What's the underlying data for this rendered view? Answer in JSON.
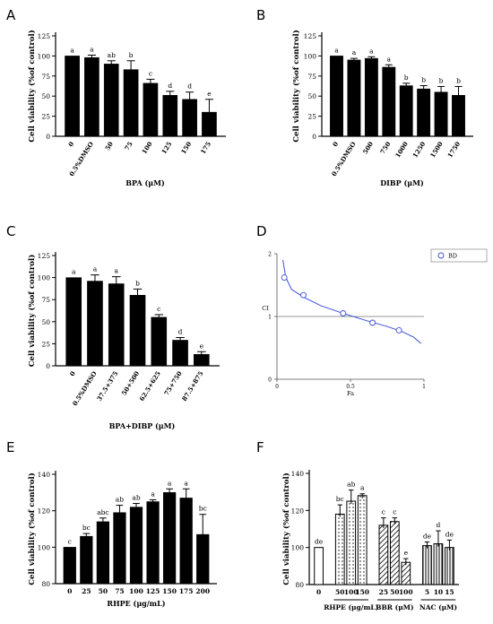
{
  "chart_data": [
    {
      "panel": "A",
      "type": "bar",
      "ylabel": "Cell viability (%of control)",
      "xlabel": "BPA (μM)",
      "ylim": [
        0,
        125
      ],
      "yticks": [
        0,
        25,
        50,
        75,
        100,
        125
      ],
      "categories": [
        "0",
        "0.5%DMSO",
        "50",
        "75",
        "100",
        "125",
        "150",
        "175"
      ],
      "values": [
        100,
        98,
        90,
        83,
        66,
        51,
        46,
        30
      ],
      "errors": [
        0,
        3,
        4,
        11,
        5,
        5,
        9,
        16
      ],
      "letters": [
        "a",
        "a",
        "ab",
        "b",
        "c",
        "d",
        "d",
        "e"
      ]
    },
    {
      "panel": "B",
      "type": "bar",
      "ylabel": "Cell viability (%of control)",
      "xlabel": "DIBP (μM)",
      "ylim": [
        0,
        125
      ],
      "yticks": [
        0,
        25,
        50,
        75,
        100,
        125
      ],
      "categories": [
        "0",
        "0.5%DMSO",
        "500",
        "750",
        "1000",
        "1250",
        "1500",
        "1750"
      ],
      "values": [
        100,
        95,
        97,
        86,
        63,
        59,
        55,
        51
      ],
      "errors": [
        0,
        2,
        2,
        3,
        3,
        4,
        7,
        11
      ],
      "letters": [
        "a",
        "a",
        "a",
        "a",
        "b",
        "b",
        "b",
        "b"
      ]
    },
    {
      "panel": "C",
      "type": "bar",
      "ylabel": "Cell viability (%of control)",
      "xlabel": "BPA+DIBP (μM)",
      "ylim": [
        0,
        125
      ],
      "yticks": [
        0,
        25,
        50,
        75,
        100,
        125
      ],
      "categories": [
        "0",
        "0.5%DMSO",
        "37.5+375",
        "50+500",
        "62.5+625",
        "75+750",
        "87.5+875"
      ],
      "values": [
        100,
        96,
        93,
        80,
        55,
        29,
        13
      ],
      "errors": [
        0,
        7,
        8,
        7,
        3,
        3,
        3
      ],
      "letters": [
        "a",
        "a",
        "a",
        "b",
        "c",
        "d",
        "e"
      ]
    },
    {
      "panel": "D",
      "type": "scatter",
      "ylabel": "CI",
      "xlabel": "Fa",
      "xlim": [
        0,
        1
      ],
      "ylim": [
        0,
        2
      ],
      "xticks": [
        "0",
        "0.5",
        "1"
      ],
      "yticks": [
        "2",
        "1",
        "0"
      ],
      "legend": "BD",
      "points": [
        [
          0.05,
          1.62
        ],
        [
          0.18,
          1.34
        ],
        [
          0.45,
          1.05
        ],
        [
          0.65,
          0.9
        ],
        [
          0.83,
          0.78
        ]
      ],
      "reference_line": 1,
      "curve": [
        [
          0.04,
          1.9
        ],
        [
          0.06,
          1.62
        ],
        [
          0.1,
          1.43
        ],
        [
          0.18,
          1.31
        ],
        [
          0.3,
          1.17
        ],
        [
          0.45,
          1.05
        ],
        [
          0.6,
          0.94
        ],
        [
          0.75,
          0.84
        ],
        [
          0.85,
          0.76
        ],
        [
          0.93,
          0.67
        ],
        [
          0.98,
          0.57
        ]
      ]
    },
    {
      "panel": "E",
      "type": "bar",
      "ylabel": "Cell viability (%of control)",
      "xlabel": "RHPE (μg/mL)",
      "ylim": [
        80,
        140
      ],
      "yticks": [
        80,
        100,
        120,
        140
      ],
      "categories": [
        "0",
        "25",
        "50",
        "75",
        "100",
        "125",
        "150",
        "175",
        "200"
      ],
      "values": [
        100,
        106,
        114,
        119,
        122,
        125,
        130,
        127,
        107
      ],
      "errors": [
        0,
        1.5,
        2,
        4,
        2,
        1,
        2,
        5,
        11
      ],
      "letters": [
        "c",
        "bc",
        "abc",
        "ab",
        "ab",
        "a",
        "a",
        "a",
        "bc"
      ]
    },
    {
      "panel": "F",
      "type": "bar",
      "ylabel": "Cell viability (%of control)",
      "ylim": [
        80,
        140
      ],
      "yticks": [
        80,
        100,
        120,
        140
      ],
      "categories": [
        "0",
        "50",
        "100",
        "150",
        "25",
        "50",
        "100",
        "5",
        "10",
        "15"
      ],
      "values": [
        100,
        118,
        125,
        128,
        112,
        114,
        92,
        101,
        102,
        100
      ],
      "errors": [
        0,
        5,
        6,
        1,
        4,
        2,
        2,
        2,
        7,
        4
      ],
      "letters": [
        "de",
        "bc",
        "ab",
        "a",
        "c",
        "c",
        "e",
        "de",
        "d",
        "de"
      ],
      "groups": [
        {
          "label": "RHPE (μg/mL)",
          "from": 1,
          "to": 3,
          "pattern": "dots"
        },
        {
          "label": "BBR (μM)",
          "from": 4,
          "to": 6,
          "pattern": "hatch"
        },
        {
          "label": "NAC (μM)",
          "from": 7,
          "to": 9,
          "pattern": "vlines"
        }
      ]
    }
  ]
}
